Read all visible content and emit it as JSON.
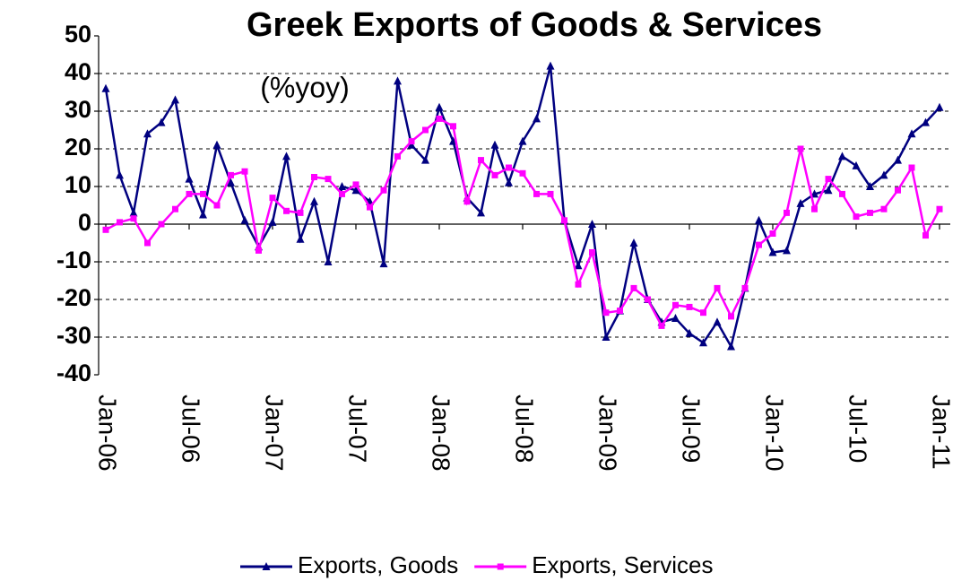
{
  "chart_data": {
    "type": "line",
    "title": "Greek Exports of Goods & Services",
    "subtitle": "(%yoy)",
    "categories": [
      "Jan-06",
      null,
      null,
      null,
      null,
      null,
      "Jul-06",
      null,
      null,
      null,
      null,
      null,
      "Jan-07",
      null,
      null,
      null,
      null,
      null,
      "Jul-07",
      null,
      null,
      null,
      null,
      null,
      "Jan-08",
      null,
      null,
      null,
      null,
      null,
      "Jul-08",
      null,
      null,
      null,
      null,
      null,
      "Jan-09",
      null,
      null,
      null,
      null,
      null,
      "Jul-09",
      null,
      null,
      null,
      null,
      null,
      "Jan-10",
      null,
      null,
      null,
      null,
      null,
      "Jul-10",
      null,
      null,
      null,
      null,
      null,
      "Jan-11"
    ],
    "series": [
      {
        "name": "Exports, Goods",
        "color": "#000080",
        "marker": "triangle",
        "values": [
          36,
          13,
          3,
          24,
          27,
          33,
          12,
          2.5,
          21,
          11,
          1,
          -6,
          0.5,
          18,
          -4,
          6,
          -10,
          10,
          9,
          6,
          -10.5,
          38,
          21,
          17,
          31,
          22,
          7,
          3,
          21,
          11,
          22,
          28,
          42,
          1,
          -11,
          0,
          -30,
          -23,
          -5,
          -20,
          -26,
          -25,
          -29,
          -31.5,
          -26,
          -32.5,
          -17,
          1,
          -7.5,
          -7,
          5.5,
          8,
          9,
          18,
          15.5,
          10,
          13,
          17,
          24,
          27,
          31
        ]
      },
      {
        "name": "Exports, Services",
        "color": "#ff00ff",
        "marker": "square",
        "values": [
          -1.5,
          0.5,
          1.5,
          -5,
          0,
          4,
          8,
          8,
          5,
          13,
          14,
          -7,
          7,
          3.5,
          3,
          12.5,
          12,
          8,
          10.5,
          4.5,
          9,
          18,
          22,
          25,
          28,
          26,
          6,
          17,
          13,
          15,
          13.5,
          8,
          8,
          1,
          -16,
          -7.5,
          -23.5,
          -23,
          -17,
          -20,
          -27,
          -21.5,
          -22,
          -23.5,
          -17,
          -24.5,
          -17,
          -5.5,
          -2.5,
          3,
          20,
          4,
          12,
          8,
          2,
          3,
          4,
          9,
          15,
          -3,
          4
        ]
      }
    ],
    "ylim": [
      -40,
      50
    ],
    "yticks": [
      -40,
      -30,
      -20,
      -10,
      0,
      10,
      20,
      30,
      40,
      50
    ],
    "grid": true,
    "legend": "bottom"
  }
}
